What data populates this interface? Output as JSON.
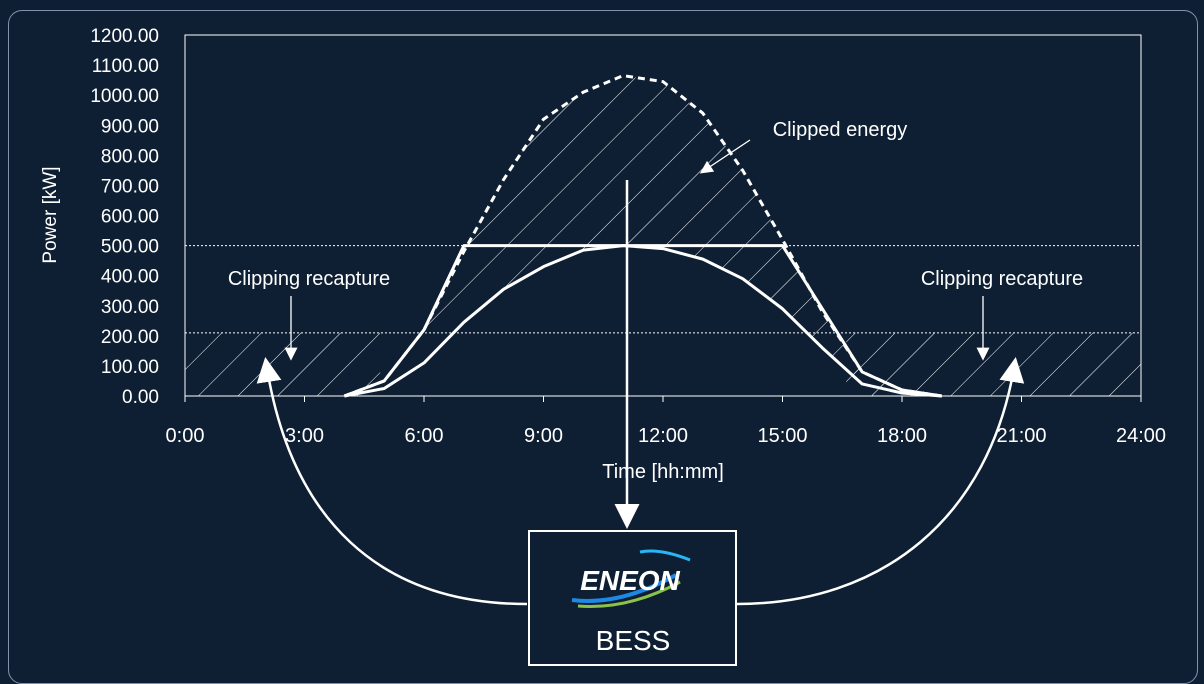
{
  "chart_data": {
    "type": "line",
    "title": "",
    "xlabel": "Time [hh:mm]",
    "ylabel": "Power [kW]",
    "xlim": [
      0,
      24
    ],
    "ylim": [
      0,
      1200
    ],
    "x_ticks": [
      "0:00",
      "3:00",
      "6:00",
      "9:00",
      "12:00",
      "15:00",
      "18:00",
      "21:00",
      "24:00"
    ],
    "y_ticks": [
      "0.00",
      "100.00",
      "200.00",
      "300.00",
      "400.00",
      "500.00",
      "600.00",
      "700.00",
      "800.00",
      "900.00",
      "1000.00",
      "1100.00",
      "1200.00"
    ],
    "clip_limit": 500,
    "recapture_threshold": 210,
    "grid": false,
    "series": [
      {
        "style": "dashed",
        "x": [
          4,
          5,
          6,
          7,
          8,
          9,
          10,
          11,
          12,
          13,
          14,
          15,
          16,
          17,
          18,
          19
        ],
        "y": [
          0,
          50,
          220,
          480,
          720,
          920,
          1010,
          1065,
          1045,
          940,
          750,
          520,
          280,
          80,
          20,
          0
        ]
      },
      {
        "style": "solid",
        "x": [
          4,
          5,
          6,
          7,
          15,
          16,
          17,
          18,
          19
        ],
        "y": [
          0,
          50,
          220,
          500,
          500,
          290,
          80,
          20,
          0
        ]
      },
      {
        "style": "solid",
        "x": [
          4,
          5,
          6,
          7,
          8,
          9,
          10,
          11,
          12,
          13,
          14,
          15,
          16,
          17,
          18,
          19
        ],
        "y": [
          0,
          25,
          110,
          245,
          355,
          430,
          485,
          500,
          490,
          455,
          390,
          290,
          160,
          40,
          10,
          0
        ]
      }
    ],
    "annotations": {
      "clipped": "Clipped energy",
      "recapture_left": "Clipping recapture",
      "recapture_right": "Clipping recapture"
    }
  },
  "bess": {
    "logo_text": "ENEON",
    "label": "BESS"
  },
  "colors": {
    "background": "#0f1f33",
    "line": "#ffffff",
    "bess_box": "#0f1f33"
  }
}
